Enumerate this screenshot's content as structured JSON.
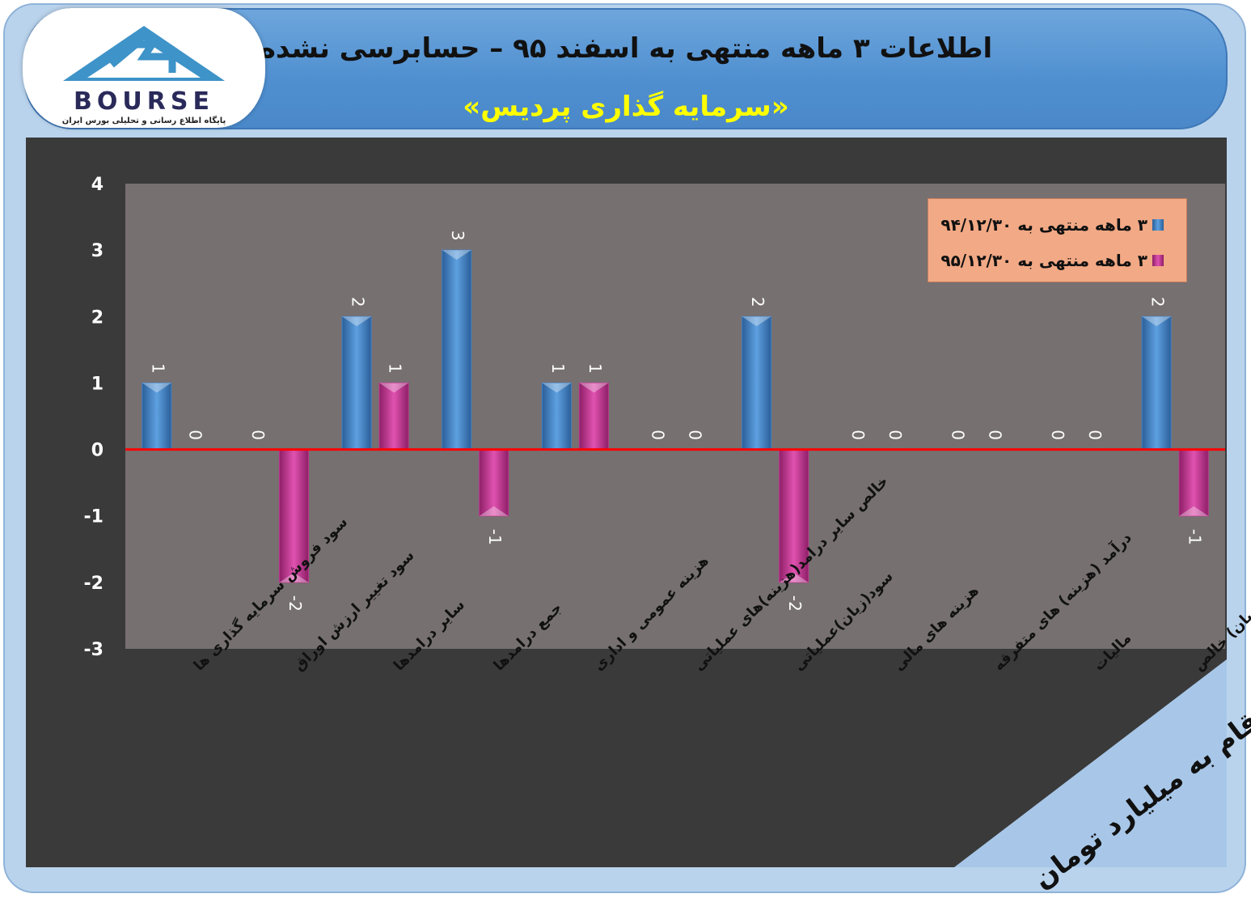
{
  "header": {
    "title": "اطلاعات ۳ ماهه منتهی به اسفند ۹۵ – حسابرسی نشده",
    "subtitle": "«سرمایه گذاری پردیس»"
  },
  "logo": {
    "text": "BOURSE",
    "tagline": "پایگاه اطلاع رسانی و تحلیلی بورس ایران"
  },
  "unit_note": "ارقام به میلیارد تومان",
  "colors": {
    "series1": "#3f7fc4",
    "series2": "#c2308f",
    "zero_line": "#ff0000",
    "plot_bg": "#767071"
  },
  "chart_data": {
    "type": "bar",
    "categories": [
      "سود فروش سرمایه گذاری ها",
      "سود تغییر ارزش اوراق",
      "سایر درامدها",
      "جمع درامدها",
      "هزینه عمومی و اداری",
      "خالص سایر درامد(هزینه)های عملیاتی",
      "سود(زیان)عملیاتی",
      "هزینه های مالی",
      "درآمد (هزینه) های متفرقه",
      "مالیات",
      "سود(زیان) خالص"
    ],
    "series": [
      {
        "name": "۳ ماهه منتهی به ۹۴/۱۲/۳۰",
        "values": [
          1,
          0,
          2,
          3,
          1,
          0,
          2,
          0,
          0,
          0,
          2
        ]
      },
      {
        "name": "۳ ماهه منتهی به ۹۵/۱۲/۳۰",
        "values": [
          0,
          -2,
          1,
          -1,
          1,
          0,
          -2,
          0,
          0,
          0,
          -1
        ]
      }
    ],
    "ylim": [
      -3,
      4
    ],
    "yticks": [
      -3,
      -2,
      -1,
      0,
      1,
      2,
      3,
      4
    ],
    "grid": false,
    "legend_position": "top-right"
  }
}
